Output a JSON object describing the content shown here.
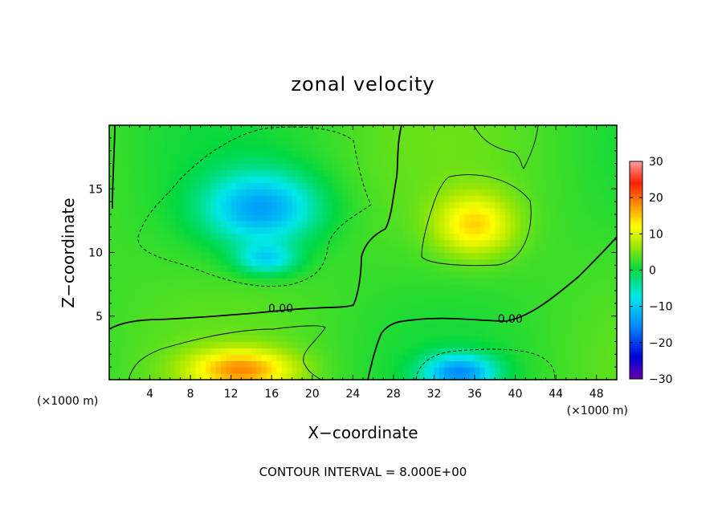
{
  "chart_data": {
    "type": "heatmap",
    "title": "zonal velocity",
    "xlabel": "X−coordinate",
    "ylabel": "Z−coordinate",
    "x_unit": "(×1000 m)",
    "z_unit": "(×1000 m)",
    "xlim": [
      0,
      50
    ],
    "ylim": [
      0,
      20
    ],
    "x_ticks": [
      4,
      8,
      12,
      16,
      20,
      24,
      28,
      32,
      36,
      40,
      44,
      48
    ],
    "y_ticks": [
      5,
      10,
      15
    ],
    "colorbar": {
      "min": -30,
      "max": 30,
      "ticks": [
        30,
        20,
        10,
        0,
        -10,
        -20,
        -30
      ],
      "tick_labels": [
        "30",
        "20",
        "10",
        "0",
        "−10",
        "−20",
        "−30"
      ]
    },
    "contour_interval_text": "CONTOUR INTERVAL = 8.000E+00",
    "contour_labels": [
      {
        "text": "0.00",
        "x": 16.9,
        "z": 5.6
      },
      {
        "text": "0.00",
        "x": 39.5,
        "z": 4.8
      }
    ],
    "features": [
      {
        "kind": "min",
        "x": 15,
        "z": 13.5,
        "sx": 5.5,
        "sz": 2.8,
        "value": -15
      },
      {
        "kind": "min",
        "x": 15.5,
        "z": 9.5,
        "sx": 3.0,
        "sz": 1.2,
        "value": -10
      },
      {
        "kind": "min",
        "x": 34.5,
        "z": 0.6,
        "sx": 3.5,
        "sz": 1.4,
        "value": -16
      },
      {
        "kind": "max",
        "x": 13,
        "z": 0.8,
        "sx": 5.0,
        "sz": 1.6,
        "value": 14
      },
      {
        "kind": "max",
        "x": 36,
        "z": 12.2,
        "sx": 3.8,
        "sz": 2.4,
        "value": 11
      }
    ]
  }
}
